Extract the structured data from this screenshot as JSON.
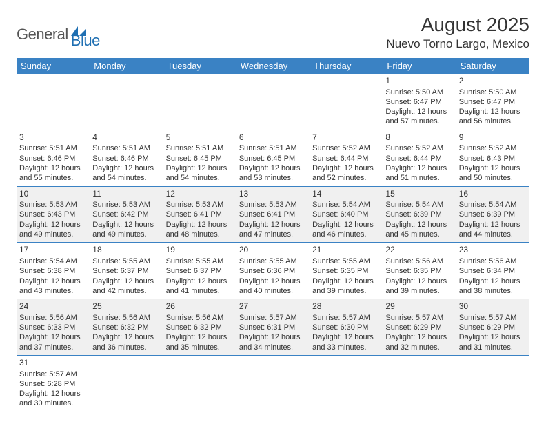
{
  "logo": {
    "general": "General",
    "blue": "Blue"
  },
  "title": "August 2025",
  "location": "Nuevo Torno Largo, Mexico",
  "headers": [
    "Sunday",
    "Monday",
    "Tuesday",
    "Wednesday",
    "Thursday",
    "Friday",
    "Saturday"
  ],
  "colors": {
    "header_bg": "#3a82c4",
    "header_text": "#ffffff",
    "border": "#3a82c4",
    "alt_row": "#f0f0f0",
    "logo_gray": "#555555",
    "logo_blue": "#1f6fb2"
  },
  "weeks": [
    [
      null,
      null,
      null,
      null,
      null,
      {
        "day": "1",
        "sunrise": "Sunrise: 5:50 AM",
        "sunset": "Sunset: 6:47 PM",
        "daylight": "Daylight: 12 hours and 57 minutes."
      },
      {
        "day": "2",
        "sunrise": "Sunrise: 5:50 AM",
        "sunset": "Sunset: 6:47 PM",
        "daylight": "Daylight: 12 hours and 56 minutes."
      }
    ],
    [
      {
        "day": "3",
        "sunrise": "Sunrise: 5:51 AM",
        "sunset": "Sunset: 6:46 PM",
        "daylight": "Daylight: 12 hours and 55 minutes."
      },
      {
        "day": "4",
        "sunrise": "Sunrise: 5:51 AM",
        "sunset": "Sunset: 6:46 PM",
        "daylight": "Daylight: 12 hours and 54 minutes."
      },
      {
        "day": "5",
        "sunrise": "Sunrise: 5:51 AM",
        "sunset": "Sunset: 6:45 PM",
        "daylight": "Daylight: 12 hours and 54 minutes."
      },
      {
        "day": "6",
        "sunrise": "Sunrise: 5:51 AM",
        "sunset": "Sunset: 6:45 PM",
        "daylight": "Daylight: 12 hours and 53 minutes."
      },
      {
        "day": "7",
        "sunrise": "Sunrise: 5:52 AM",
        "sunset": "Sunset: 6:44 PM",
        "daylight": "Daylight: 12 hours and 52 minutes."
      },
      {
        "day": "8",
        "sunrise": "Sunrise: 5:52 AM",
        "sunset": "Sunset: 6:44 PM",
        "daylight": "Daylight: 12 hours and 51 minutes."
      },
      {
        "day": "9",
        "sunrise": "Sunrise: 5:52 AM",
        "sunset": "Sunset: 6:43 PM",
        "daylight": "Daylight: 12 hours and 50 minutes."
      }
    ],
    [
      {
        "day": "10",
        "sunrise": "Sunrise: 5:53 AM",
        "sunset": "Sunset: 6:43 PM",
        "daylight": "Daylight: 12 hours and 49 minutes."
      },
      {
        "day": "11",
        "sunrise": "Sunrise: 5:53 AM",
        "sunset": "Sunset: 6:42 PM",
        "daylight": "Daylight: 12 hours and 49 minutes."
      },
      {
        "day": "12",
        "sunrise": "Sunrise: 5:53 AM",
        "sunset": "Sunset: 6:41 PM",
        "daylight": "Daylight: 12 hours and 48 minutes."
      },
      {
        "day": "13",
        "sunrise": "Sunrise: 5:53 AM",
        "sunset": "Sunset: 6:41 PM",
        "daylight": "Daylight: 12 hours and 47 minutes."
      },
      {
        "day": "14",
        "sunrise": "Sunrise: 5:54 AM",
        "sunset": "Sunset: 6:40 PM",
        "daylight": "Daylight: 12 hours and 46 minutes."
      },
      {
        "day": "15",
        "sunrise": "Sunrise: 5:54 AM",
        "sunset": "Sunset: 6:39 PM",
        "daylight": "Daylight: 12 hours and 45 minutes."
      },
      {
        "day": "16",
        "sunrise": "Sunrise: 5:54 AM",
        "sunset": "Sunset: 6:39 PM",
        "daylight": "Daylight: 12 hours and 44 minutes."
      }
    ],
    [
      {
        "day": "17",
        "sunrise": "Sunrise: 5:54 AM",
        "sunset": "Sunset: 6:38 PM",
        "daylight": "Daylight: 12 hours and 43 minutes."
      },
      {
        "day": "18",
        "sunrise": "Sunrise: 5:55 AM",
        "sunset": "Sunset: 6:37 PM",
        "daylight": "Daylight: 12 hours and 42 minutes."
      },
      {
        "day": "19",
        "sunrise": "Sunrise: 5:55 AM",
        "sunset": "Sunset: 6:37 PM",
        "daylight": "Daylight: 12 hours and 41 minutes."
      },
      {
        "day": "20",
        "sunrise": "Sunrise: 5:55 AM",
        "sunset": "Sunset: 6:36 PM",
        "daylight": "Daylight: 12 hours and 40 minutes."
      },
      {
        "day": "21",
        "sunrise": "Sunrise: 5:55 AM",
        "sunset": "Sunset: 6:35 PM",
        "daylight": "Daylight: 12 hours and 39 minutes."
      },
      {
        "day": "22",
        "sunrise": "Sunrise: 5:56 AM",
        "sunset": "Sunset: 6:35 PM",
        "daylight": "Daylight: 12 hours and 39 minutes."
      },
      {
        "day": "23",
        "sunrise": "Sunrise: 5:56 AM",
        "sunset": "Sunset: 6:34 PM",
        "daylight": "Daylight: 12 hours and 38 minutes."
      }
    ],
    [
      {
        "day": "24",
        "sunrise": "Sunrise: 5:56 AM",
        "sunset": "Sunset: 6:33 PM",
        "daylight": "Daylight: 12 hours and 37 minutes."
      },
      {
        "day": "25",
        "sunrise": "Sunrise: 5:56 AM",
        "sunset": "Sunset: 6:32 PM",
        "daylight": "Daylight: 12 hours and 36 minutes."
      },
      {
        "day": "26",
        "sunrise": "Sunrise: 5:56 AM",
        "sunset": "Sunset: 6:32 PM",
        "daylight": "Daylight: 12 hours and 35 minutes."
      },
      {
        "day": "27",
        "sunrise": "Sunrise: 5:57 AM",
        "sunset": "Sunset: 6:31 PM",
        "daylight": "Daylight: 12 hours and 34 minutes."
      },
      {
        "day": "28",
        "sunrise": "Sunrise: 5:57 AM",
        "sunset": "Sunset: 6:30 PM",
        "daylight": "Daylight: 12 hours and 33 minutes."
      },
      {
        "day": "29",
        "sunrise": "Sunrise: 5:57 AM",
        "sunset": "Sunset: 6:29 PM",
        "daylight": "Daylight: 12 hours and 32 minutes."
      },
      {
        "day": "30",
        "sunrise": "Sunrise: 5:57 AM",
        "sunset": "Sunset: 6:29 PM",
        "daylight": "Daylight: 12 hours and 31 minutes."
      }
    ],
    [
      {
        "day": "31",
        "sunrise": "Sunrise: 5:57 AM",
        "sunset": "Sunset: 6:28 PM",
        "daylight": "Daylight: 12 hours and 30 minutes."
      },
      null,
      null,
      null,
      null,
      null,
      null
    ]
  ]
}
